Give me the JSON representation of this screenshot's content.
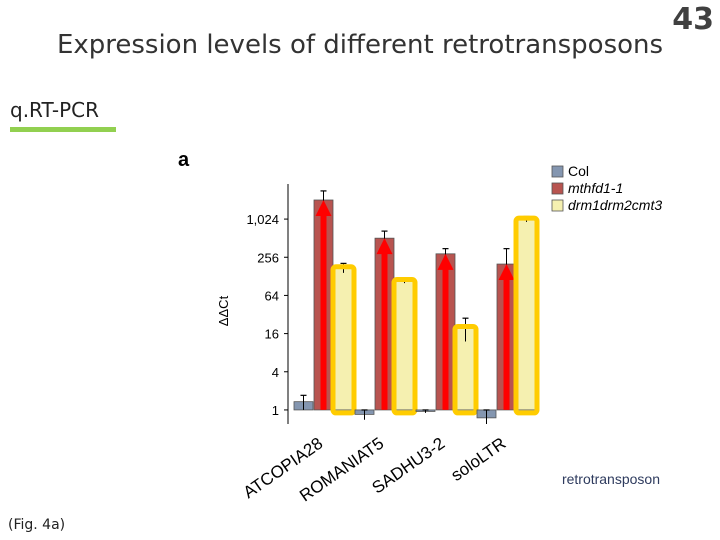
{
  "slide": {
    "title": "Expression levels of different retrotransposons",
    "number": "43",
    "subheading": "q.RT-PCR",
    "caption": "(Fig. 4a)",
    "accent_color": "#92d050"
  },
  "chart_data": {
    "type": "bar",
    "panel_label": "a",
    "title": "",
    "xlabel": "retrotransposon",
    "ylabel": "ΔΔCt",
    "y_scale": "log2",
    "ylim": [
      0.6,
      2048
    ],
    "y_ticks": [
      1,
      4,
      16,
      64,
      256,
      1024
    ],
    "y_tick_labels": [
      "1",
      "4",
      "16",
      "64",
      "256",
      "1,024"
    ],
    "categories": [
      "ATCOPIA28",
      "ROMANIAT5",
      "SADHU3-2",
      "soloLTR"
    ],
    "series": [
      {
        "name": "Col",
        "color": "#8496b0",
        "values": [
          1.35,
          0.85,
          0.95,
          0.75
        ],
        "err": [
          0.35,
          0.15,
          0.05,
          0.25
        ]
      },
      {
        "name": "mthfd1-1",
        "color": "#b85450",
        "values": [
          2048,
          512,
          290,
          200
        ],
        "err": [
          800,
          150,
          60,
          150
        ]
      },
      {
        "name": "drm1drm2cmt3",
        "color": "#f5f0b0",
        "values": [
          175,
          110,
          20,
          1024
        ],
        "err": [
          30,
          10,
          8,
          100
        ]
      }
    ],
    "legend_position": "top-right",
    "annotations": {
      "arrow_color": "#ff0000",
      "highlight_color": "#ffcc00"
    }
  }
}
